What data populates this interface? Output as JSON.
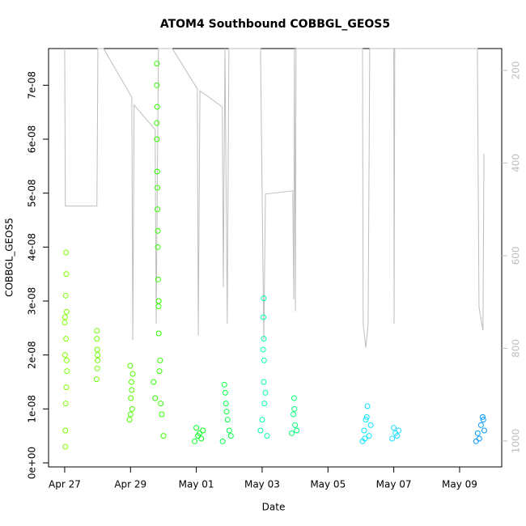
{
  "chart_data": {
    "type": "scatter",
    "title": "ATOM4 Southbound COBBGL_GEOS5",
    "xlabel": "Date",
    "ylabel": "COBBGL_GEOS5",
    "xlim": [
      -0.49,
      13.28
    ],
    "xticks": [
      {
        "value": 0,
        "label": "Apr 27"
      },
      {
        "value": 2,
        "label": "Apr 29"
      },
      {
        "value": 4,
        "label": "May 01"
      },
      {
        "value": 6,
        "label": "May 03"
      },
      {
        "value": 8,
        "label": "May 05"
      },
      {
        "value": 10,
        "label": "May 07"
      },
      {
        "value": 12,
        "label": "May 09"
      }
    ],
    "ylim": [
      -7.5e-10,
      7.68e-08
    ],
    "yticks": [
      {
        "value": 0,
        "label": "0e+00"
      },
      {
        "value": 1e-08,
        "label": "1e-08"
      },
      {
        "value": 2e-08,
        "label": "2e-08"
      },
      {
        "value": 3e-08,
        "label": "3e-08"
      },
      {
        "value": 4e-08,
        "label": "4e-08"
      },
      {
        "value": 5e-08,
        "label": "5e-08"
      },
      {
        "value": 6e-08,
        "label": "6e-08"
      },
      {
        "value": 7e-08,
        "label": "7e-08"
      }
    ],
    "y2lim": [
      1056,
      153
    ],
    "y2ticks": [
      200,
      400,
      600,
      800,
      1000
    ],
    "series": [
      {
        "color": "#bebebe",
        "axis": "y2",
        "mode": "line",
        "x": [
          0.0,
          0.02,
          0.98,
          1.01,
          1.18,
          2.04,
          2.07,
          2.11,
          2.75,
          2.78,
          2.85,
          3.27,
          4.03,
          4.06,
          4.11,
          4.79,
          4.82,
          4.87,
          4.94,
          4.99,
          5.95,
          6.0,
          6.05,
          6.1,
          6.93,
          6.96,
          6.98,
          7.01,
          7.03,
          9.05,
          9.07,
          9.15,
          9.22,
          9.27,
          10.0,
          10.01,
          10.03,
          12.54,
          12.59,
          12.71,
          12.74
        ],
        "values": [
          153,
          493,
          493,
          153,
          153,
          258,
          782,
          275,
          328,
          747,
          153,
          153,
          240,
          773,
          244,
          279,
          668,
          153,
          747,
          153,
          153,
          467,
          782,
          467,
          460,
          694,
          153,
          720,
          153,
          153,
          747,
          799,
          747,
          153,
          153,
          747,
          153,
          153,
          712,
          761,
          380
        ]
      },
      {
        "color": "#7fff00",
        "x": [
          0.0,
          0.01,
          0.02,
          0.03,
          0.04,
          0.05,
          0.06,
          0.07,
          0.02,
          0.04,
          0.06,
          0.03,
          0.05,
          0.01
        ],
        "values": [
          2.6e-08,
          2e-08,
          3e-09,
          1.1e-08,
          3.9e-08,
          3.5e-08,
          2.8e-08,
          1.7e-08,
          6e-09,
          2.3e-08,
          1.9e-08,
          3.1e-08,
          1.4e-08,
          2.7e-08
        ]
      },
      {
        "color": "#6fff00",
        "x": [
          0.97,
          0.98,
          0.99,
          1.0,
          0.98,
          0.99,
          1.0
        ],
        "values": [
          1.55e-08,
          2.45e-08,
          2.1e-08,
          1.9e-08,
          2.3e-08,
          1.75e-08,
          2e-08
        ]
      },
      {
        "color": "#4fff00",
        "x": [
          1.97,
          1.99,
          2.01,
          2.03,
          2.05,
          2.07,
          2.0,
          2.04
        ],
        "values": [
          8e-09,
          1.8e-08,
          1.2e-08,
          1.5e-08,
          1e-08,
          1.65e-08,
          9e-09,
          1.35e-08
        ]
      },
      {
        "color": "#33ff00",
        "x": [
          2.8,
          2.8,
          2.81,
          2.8,
          2.81,
          2.82,
          2.83,
          2.84,
          2.85,
          2.86,
          2.9,
          2.7,
          2.75,
          2.95,
          3.0,
          2.92,
          2.88,
          2.8,
          2.82,
          2.83,
          2.86
        ],
        "values": [
          7.4e-08,
          7e-08,
          6.6e-08,
          6e-08,
          5.4e-08,
          4.7e-08,
          4e-08,
          3.4e-08,
          2.9e-08,
          2.4e-08,
          1.9e-08,
          1.5e-08,
          1.2e-08,
          9e-09,
          5e-09,
          1.1e-08,
          1.7e-08,
          6.3e-08,
          5.1e-08,
          4.3e-08,
          3e-08
        ]
      },
      {
        "color": "#00ff22",
        "x": [
          3.95,
          4.0,
          4.05,
          4.1,
          4.15,
          4.2
        ],
        "values": [
          4e-09,
          6.5e-09,
          5e-09,
          5.5e-09,
          4.5e-09,
          6e-09
        ]
      },
      {
        "color": "#00ff44",
        "x": [
          4.8,
          4.85,
          4.9,
          4.95,
          5.0,
          5.05,
          4.88,
          4.92
        ],
        "values": [
          4e-09,
          1.45e-08,
          1.1e-08,
          8e-09,
          6e-09,
          5e-09,
          1.3e-08,
          9.5e-09
        ]
      },
      {
        "color": "#00ffaa",
        "x": [
          6.05,
          6.04,
          6.05,
          6.06,
          6.05,
          6.07,
          5.95,
          6.0,
          6.15,
          6.1,
          6.03
        ],
        "values": [
          3.05e-08,
          2.7e-08,
          2.3e-08,
          1.9e-08,
          1.5e-08,
          1.1e-08,
          6e-09,
          8e-09,
          5e-09,
          1.3e-08,
          2.1e-08
        ]
      },
      {
        "color": "#00ff77",
        "x": [
          6.9,
          6.97,
          6.95,
          7.0,
          7.05,
          6.98
        ],
        "values": [
          5.5e-09,
          1.2e-08,
          9e-09,
          7e-09,
          6e-09,
          1e-08
        ]
      },
      {
        "color": "#00e5ff",
        "x": [
          9.05,
          9.2,
          9.15,
          9.1,
          9.25,
          9.3,
          9.12,
          9.18
        ],
        "values": [
          4e-09,
          1.05e-08,
          8e-09,
          6e-09,
          5e-09,
          7e-09,
          4.5e-09,
          8.5e-09
        ]
      },
      {
        "color": "#22ddff",
        "x": [
          9.95,
          10.0,
          10.05,
          10.1,
          10.15
        ],
        "values": [
          4.5e-09,
          6.5e-09,
          5.5e-09,
          5e-09,
          6e-09
        ]
      },
      {
        "color": "#0099ff",
        "x": [
          12.5,
          12.7,
          12.65,
          12.55,
          12.6,
          12.75,
          12.72
        ],
        "values": [
          4e-09,
          8.5e-09,
          7e-09,
          5.5e-09,
          4.5e-09,
          6e-09,
          8e-09
        ]
      }
    ]
  }
}
